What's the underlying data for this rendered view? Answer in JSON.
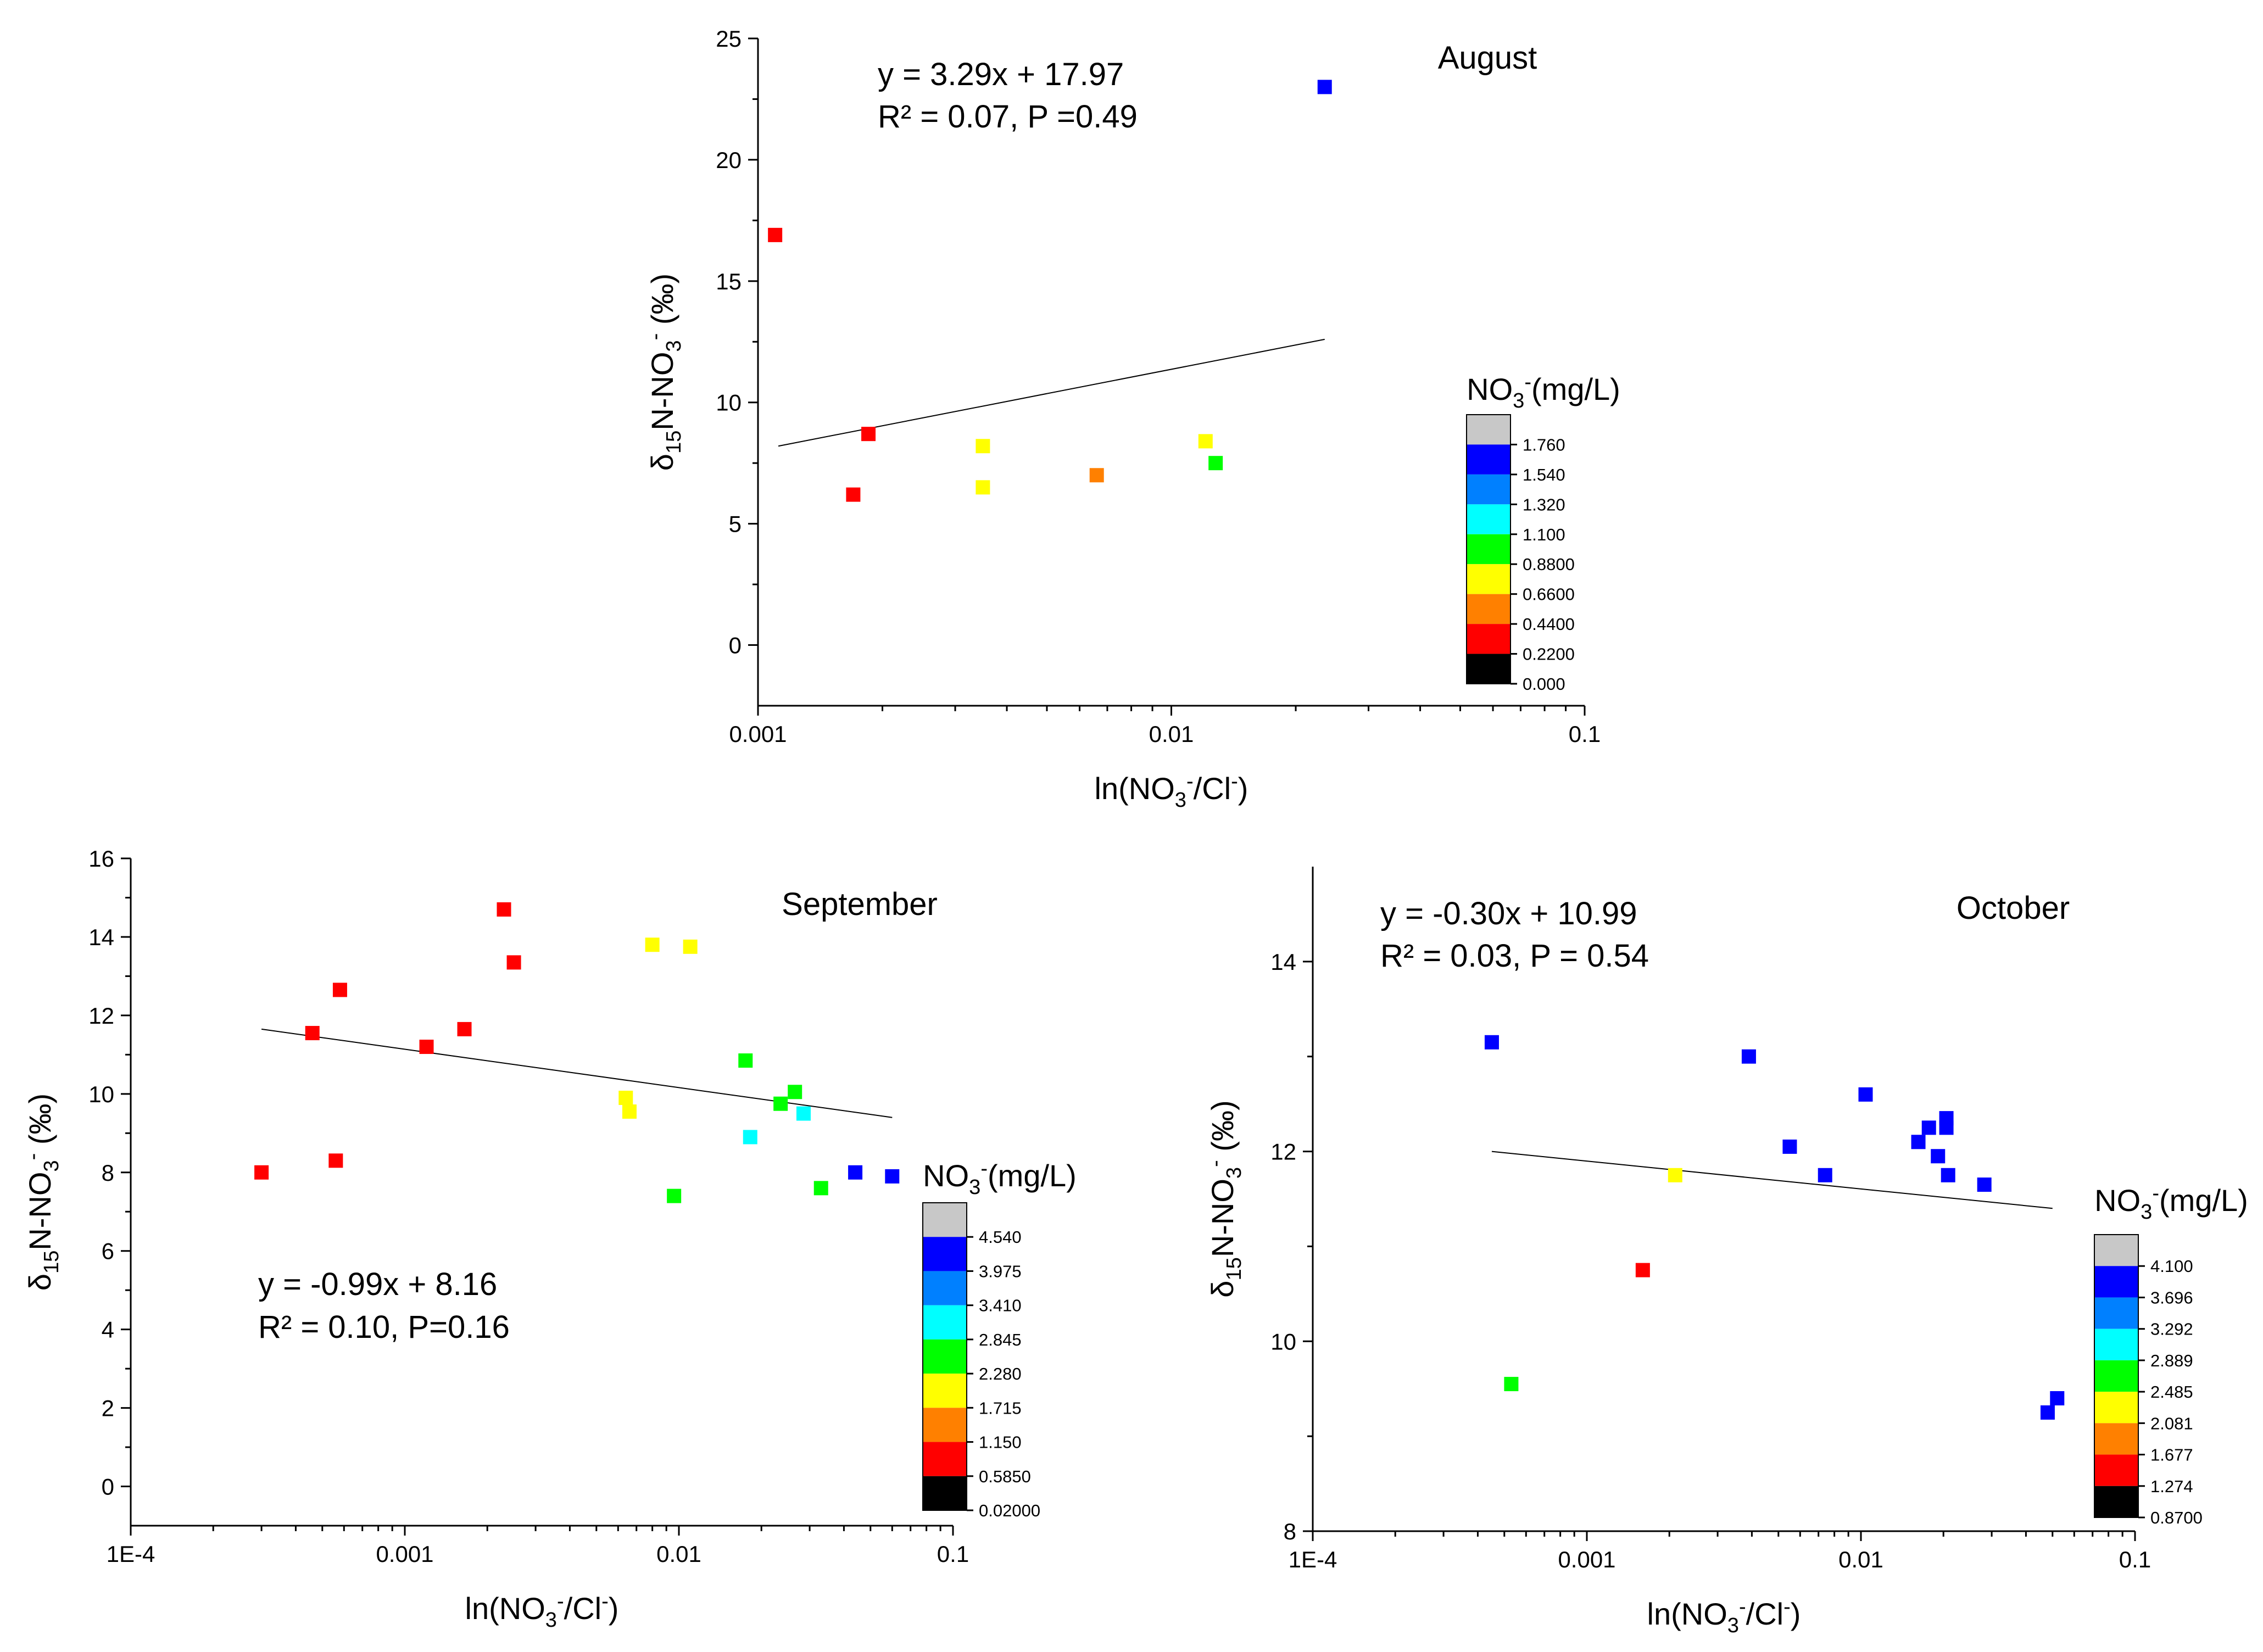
{
  "chart_data": [
    {
      "type": "scatter",
      "title": "August",
      "xlabel": "ln(NO3-/Cl-)",
      "ylabel": "δ15N-NO3- (‰)",
      "xscale": "log",
      "xlim": [
        0.001,
        0.1
      ],
      "ylim": [
        -2.5,
        25
      ],
      "xticks": [
        0.001,
        0.01,
        0.1
      ],
      "xtick_labels": [
        "0.001",
        "0.01",
        "0.1"
      ],
      "yticks": [
        0,
        5,
        10,
        15,
        20,
        25
      ],
      "ytick_labels": [
        "0",
        "5",
        "10",
        "15",
        "20",
        "25"
      ],
      "equation": "y = 3.29x + 17.97",
      "stats": "R² = 0.07, P =0.49",
      "trendline": {
        "x": [
          0.00112,
          0.0235
        ],
        "y": [
          8.2,
          12.6
        ]
      },
      "points": [
        {
          "x": 0.0011,
          "y": 16.9,
          "color": "#ff0000"
        },
        {
          "x": 0.00185,
          "y": 8.7,
          "color": "#ff0000"
        },
        {
          "x": 0.0017,
          "y": 6.2,
          "color": "#ff0000"
        },
        {
          "x": 0.0035,
          "y": 8.2,
          "color": "#ffff00"
        },
        {
          "x": 0.0035,
          "y": 6.5,
          "color": "#ffff00"
        },
        {
          "x": 0.0066,
          "y": 7.0,
          "color": "#ff8000"
        },
        {
          "x": 0.0121,
          "y": 8.4,
          "color": "#ffff00"
        },
        {
          "x": 0.0128,
          "y": 7.5,
          "color": "#00ff00"
        },
        {
          "x": 0.0235,
          "y": 23.0,
          "color": "#0000ff"
        }
      ],
      "colorbar": {
        "title": "NO3-(mg/L)",
        "labels": [
          "1.760",
          "1.540",
          "1.320",
          "1.100",
          "0.8800",
          "0.6600",
          "0.4400",
          "0.2200",
          "0.000"
        ],
        "colors": [
          "#c8c8c8",
          "#0000ff",
          "#0080ff",
          "#00ffff",
          "#00ff00",
          "#ffff00",
          "#ff8000",
          "#ff0000",
          "#000000"
        ]
      }
    },
    {
      "type": "scatter",
      "title": "September",
      "xlabel": "ln(NO3-/Cl-)",
      "ylabel": "δ15N-NO3- (‰)",
      "xscale": "log",
      "xlim": [
        0.0001,
        0.1
      ],
      "ylim": [
        -1,
        16
      ],
      "xticks": [
        0.0001,
        0.001,
        0.01,
        0.1
      ],
      "xtick_labels": [
        "1E-4",
        "0.001",
        "0.01",
        "0.1"
      ],
      "yticks": [
        0,
        2,
        4,
        6,
        8,
        10,
        12,
        14,
        16
      ],
      "ytick_labels": [
        "0",
        "2",
        "4",
        "6",
        "8",
        "10",
        "12",
        "14",
        "16"
      ],
      "equation": "y = -0.99x + 8.16",
      "stats": "R² = 0.10, P=0.16",
      "trendline": {
        "x": [
          0.0003,
          0.06
        ],
        "y": [
          11.65,
          9.4
        ]
      },
      "points": [
        {
          "x": 0.0003,
          "y": 8.0,
          "color": "#ff0000"
        },
        {
          "x": 0.00046,
          "y": 11.55,
          "color": "#ff0000"
        },
        {
          "x": 0.00056,
          "y": 8.3,
          "color": "#ff0000"
        },
        {
          "x": 0.00058,
          "y": 12.65,
          "color": "#ff0000"
        },
        {
          "x": 0.0012,
          "y": 11.2,
          "color": "#ff0000"
        },
        {
          "x": 0.00165,
          "y": 11.65,
          "color": "#ff0000"
        },
        {
          "x": 0.0023,
          "y": 14.7,
          "color": "#ff0000"
        },
        {
          "x": 0.0025,
          "y": 13.35,
          "color": "#ff0000"
        },
        {
          "x": 0.0064,
          "y": 9.9,
          "color": "#ffff00"
        },
        {
          "x": 0.0066,
          "y": 9.55,
          "color": "#ffff00"
        },
        {
          "x": 0.008,
          "y": 13.8,
          "color": "#ffff00"
        },
        {
          "x": 0.011,
          "y": 13.75,
          "color": "#ffff00"
        },
        {
          "x": 0.0096,
          "y": 7.4,
          "color": "#00ff00"
        },
        {
          "x": 0.0175,
          "y": 10.85,
          "color": "#00ff00"
        },
        {
          "x": 0.0182,
          "y": 8.9,
          "color": "#00ffff"
        },
        {
          "x": 0.0235,
          "y": 9.75,
          "color": "#00ff00"
        },
        {
          "x": 0.0265,
          "y": 10.05,
          "color": "#00ff00"
        },
        {
          "x": 0.0285,
          "y": 9.5,
          "color": "#00ffff"
        },
        {
          "x": 0.033,
          "y": 7.6,
          "color": "#00ff00"
        },
        {
          "x": 0.044,
          "y": 8.0,
          "color": "#0000ff"
        },
        {
          "x": 0.06,
          "y": 7.9,
          "color": "#0000ff"
        }
      ],
      "colorbar": {
        "title": "NO3-(mg/L)",
        "labels": [
          "4.540",
          "3.975",
          "3.410",
          "2.845",
          "2.280",
          "1.715",
          "1.150",
          "0.5850",
          "0.02000"
        ],
        "colors": [
          "#c8c8c8",
          "#0000ff",
          "#0080ff",
          "#00ffff",
          "#00ff00",
          "#ffff00",
          "#ff8000",
          "#ff0000",
          "#000000"
        ]
      }
    },
    {
      "type": "scatter",
      "title": "October",
      "xlabel": "ln(NO3-/Cl-)",
      "ylabel": "δ15N-NO3- (‰)",
      "xscale": "log",
      "xlim": [
        0.0001,
        0.1
      ],
      "ylim": [
        8,
        15
      ],
      "xticks": [
        0.0001,
        0.001,
        0.01,
        0.1
      ],
      "xtick_labels": [
        "1E-4",
        "0.001",
        "0.01",
        "0.1"
      ],
      "yticks": [
        8,
        10,
        12,
        14
      ],
      "ytick_labels": [
        "8",
        "10",
        "12",
        "14"
      ],
      "equation": "y = -0.30x + 10.99",
      "stats": "R² = 0.03, P = 0.54",
      "trendline": {
        "x": [
          0.00045,
          0.05
        ],
        "y": [
          12.0,
          11.4
        ]
      },
      "points": [
        {
          "x": 0.00045,
          "y": 13.15,
          "color": "#0000ff"
        },
        {
          "x": 0.00053,
          "y": 9.55,
          "color": "#00ff00"
        },
        {
          "x": 0.0016,
          "y": 10.75,
          "color": "#ff0000"
        },
        {
          "x": 0.0021,
          "y": 11.75,
          "color": "#ffff00"
        },
        {
          "x": 0.0039,
          "y": 13.0,
          "color": "#0000ff"
        },
        {
          "x": 0.0055,
          "y": 12.05,
          "color": "#0000ff"
        },
        {
          "x": 0.0074,
          "y": 11.75,
          "color": "#0000ff"
        },
        {
          "x": 0.0104,
          "y": 12.6,
          "color": "#0000ff"
        },
        {
          "x": 0.0162,
          "y": 12.1,
          "color": "#0000ff"
        },
        {
          "x": 0.0177,
          "y": 12.25,
          "color": "#0000ff"
        },
        {
          "x": 0.0191,
          "y": 11.95,
          "color": "#0000ff"
        },
        {
          "x": 0.0205,
          "y": 12.35,
          "color": "#0000ff"
        },
        {
          "x": 0.0205,
          "y": 12.25,
          "color": "#0000ff"
        },
        {
          "x": 0.0208,
          "y": 11.75,
          "color": "#0000ff"
        },
        {
          "x": 0.0282,
          "y": 11.65,
          "color": "#0000ff"
        },
        {
          "x": 0.048,
          "y": 9.25,
          "color": "#0000ff"
        },
        {
          "x": 0.052,
          "y": 9.4,
          "color": "#0000ff"
        }
      ],
      "colorbar": {
        "title": "NO3-(mg/L)",
        "labels": [
          "4.100",
          "3.696",
          "3.292",
          "2.889",
          "2.485",
          "2.081",
          "1.677",
          "1.274",
          "0.8700"
        ],
        "colors": [
          "#c8c8c8",
          "#0000ff",
          "#0080ff",
          "#00ffff",
          "#00ff00",
          "#ffff00",
          "#ff8000",
          "#ff0000",
          "#000000"
        ]
      }
    }
  ]
}
